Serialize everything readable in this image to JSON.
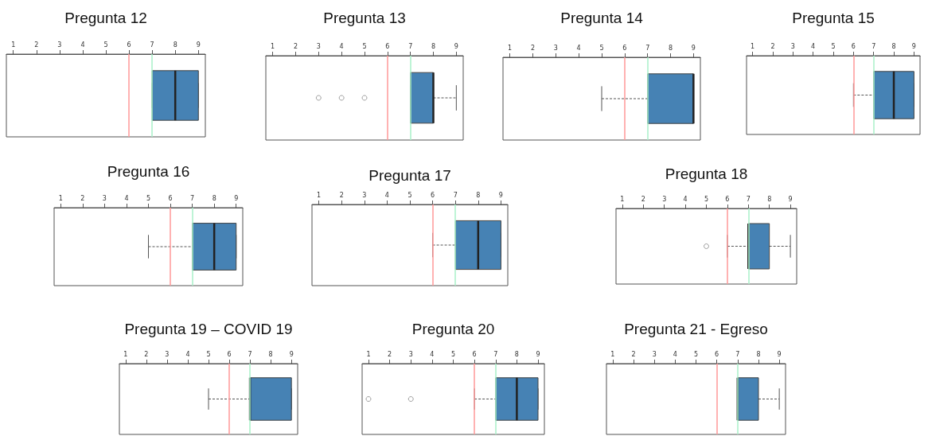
{
  "chart_data": [
    {
      "type": "box",
      "title": "Pregunta 12",
      "orientation": "horizontal",
      "categories": [
        null
      ],
      "xlim": [
        0.7,
        9.3
      ],
      "xticks": [
        1,
        2,
        3,
        4,
        5,
        6,
        7,
        8,
        9
      ],
      "tick_labels": "x",
      "grid": false,
      "ref_lines": [
        {
          "axis": "x",
          "value": 6,
          "color": "#ff9999"
        },
        {
          "axis": "x",
          "value": 7,
          "color": "#a8f0c8"
        }
      ],
      "series": [
        {
          "color": "#4682b4",
          "boxes": [
            {
              "low": 7,
              "q1": 7,
              "median": 8,
              "q3": 9,
              "high": 9
            }
          ]
        }
      ]
    },
    {
      "type": "box",
      "title": "Pregunta 13",
      "orientation": "horizontal",
      "categories": [
        null
      ],
      "xlim": [
        0.7,
        9.3
      ],
      "xticks": [
        1,
        2,
        3,
        4,
        5,
        6,
        7,
        8,
        9
      ],
      "tick_labels": "x",
      "grid": false,
      "ref_lines": [
        {
          "axis": "x",
          "value": 6,
          "color": "#ff9999"
        },
        {
          "axis": "x",
          "value": 7,
          "color": "#a8f0c8"
        }
      ],
      "series": [
        {
          "color": "#4682b4",
          "boxes": [
            {
              "low": 7,
              "q1": 7,
              "median": 8,
              "q3": 8,
              "high": 9,
              "outliers": [
                3,
                4,
                5
              ]
            }
          ]
        }
      ]
    },
    {
      "type": "box",
      "title": "Pregunta 14",
      "orientation": "horizontal",
      "categories": [
        null
      ],
      "xlim": [
        0.7,
        9.3
      ],
      "xticks": [
        1,
        2,
        3,
        4,
        5,
        6,
        7,
        8,
        9
      ],
      "tick_labels": "x",
      "grid": false,
      "ref_lines": [
        {
          "axis": "x",
          "value": 6,
          "color": "#ff9999"
        },
        {
          "axis": "x",
          "value": 7,
          "color": "#a8f0c8"
        }
      ],
      "series": [
        {
          "color": "#4682b4",
          "boxes": [
            {
              "low": 5,
              "q1": 7,
              "median": 9,
              "q3": 9,
              "high": 9
            }
          ]
        }
      ]
    },
    {
      "type": "box",
      "title": "Pregunta 15",
      "orientation": "horizontal",
      "categories": [
        null
      ],
      "xlim": [
        0.7,
        9.3
      ],
      "xticks": [
        1,
        2,
        3,
        4,
        5,
        6,
        7,
        8,
        9
      ],
      "tick_labels": "x",
      "grid": false,
      "ref_lines": [
        {
          "axis": "x",
          "value": 6,
          "color": "#ff9999"
        },
        {
          "axis": "x",
          "value": 7,
          "color": "#a8f0c8"
        }
      ],
      "series": [
        {
          "color": "#4682b4",
          "boxes": [
            {
              "low": 6,
              "q1": 7,
              "median": 8,
              "q3": 9,
              "high": 9
            }
          ]
        }
      ]
    },
    {
      "type": "box",
      "title": "Pregunta 16",
      "orientation": "horizontal",
      "categories": [
        null
      ],
      "xlim": [
        0.7,
        9.3
      ],
      "xticks": [
        1,
        2,
        3,
        4,
        5,
        6,
        7,
        8,
        9
      ],
      "tick_labels": "x",
      "grid": false,
      "ref_lines": [
        {
          "axis": "x",
          "value": 6,
          "color": "#ff9999"
        },
        {
          "axis": "x",
          "value": 7,
          "color": "#a8f0c8"
        }
      ],
      "series": [
        {
          "color": "#4682b4",
          "boxes": [
            {
              "low": 5,
              "q1": 7,
              "median": 8,
              "q3": 9,
              "high": 9
            }
          ]
        }
      ]
    },
    {
      "type": "box",
      "title": "Pregunta 17",
      "orientation": "horizontal",
      "categories": [
        null
      ],
      "xlim": [
        0.7,
        9.3
      ],
      "xticks": [
        1,
        2,
        3,
        4,
        5,
        6,
        7,
        8,
        9
      ],
      "tick_labels": "x",
      "grid": false,
      "ref_lines": [
        {
          "axis": "x",
          "value": 6,
          "color": "#ff9999"
        },
        {
          "axis": "x",
          "value": 7,
          "color": "#a8f0c8"
        }
      ],
      "series": [
        {
          "color": "#4682b4",
          "boxes": [
            {
              "low": 6,
              "q1": 7,
              "median": 8,
              "q3": 9,
              "high": 9
            }
          ]
        }
      ]
    },
    {
      "type": "box",
      "title": "Pregunta 18",
      "orientation": "horizontal",
      "categories": [
        null
      ],
      "xlim": [
        0.7,
        9.3
      ],
      "xticks": [
        1,
        2,
        3,
        4,
        5,
        6,
        7,
        8,
        9
      ],
      "tick_labels": "x",
      "grid": false,
      "ref_lines": [
        {
          "axis": "x",
          "value": 6,
          "color": "#ff9999"
        },
        {
          "axis": "x",
          "value": 7,
          "color": "#a8f0c8"
        }
      ],
      "series": [
        {
          "color": "#4682b4",
          "boxes": [
            {
              "low": 6,
              "q1": 7,
              "median": 7,
              "q3": 8,
              "high": 9,
              "outliers": [
                5
              ]
            }
          ]
        }
      ]
    },
    {
      "type": "box",
      "title": "Pregunta 19 – COVID 19",
      "orientation": "horizontal",
      "categories": [
        null
      ],
      "xlim": [
        0.7,
        9.3
      ],
      "xticks": [
        1,
        2,
        3,
        4,
        5,
        6,
        7,
        8,
        9
      ],
      "tick_labels": "x",
      "grid": false,
      "ref_lines": [
        {
          "axis": "x",
          "value": 6,
          "color": "#ff9999"
        },
        {
          "axis": "x",
          "value": 7,
          "color": "#a8f0c8"
        }
      ],
      "series": [
        {
          "color": "#4682b4",
          "boxes": [
            {
              "low": 5,
              "q1": 7,
              "median": 7,
              "q3": 9,
              "high": 9
            }
          ]
        }
      ]
    },
    {
      "type": "box",
      "title": "Pregunta 20",
      "orientation": "horizontal",
      "categories": [
        null
      ],
      "xlim": [
        0.7,
        9.3
      ],
      "xticks": [
        1,
        2,
        3,
        4,
        5,
        6,
        7,
        8,
        9
      ],
      "tick_labels": "x",
      "grid": false,
      "ref_lines": [
        {
          "axis": "x",
          "value": 6,
          "color": "#ff9999"
        },
        {
          "axis": "x",
          "value": 7,
          "color": "#a8f0c8"
        }
      ],
      "series": [
        {
          "color": "#4682b4",
          "boxes": [
            {
              "low": 6,
              "q1": 7,
              "median": 8,
              "q3": 9,
              "high": 9,
              "outliers": [
                1,
                3
              ]
            }
          ]
        }
      ]
    },
    {
      "type": "box",
      "title": "Pregunta 21 - Egreso",
      "orientation": "horizontal",
      "categories": [
        null
      ],
      "xlim": [
        0.7,
        9.3
      ],
      "xticks": [
        1,
        2,
        3,
        4,
        5,
        6,
        7,
        8,
        9
      ],
      "tick_labels": "x",
      "grid": false,
      "ref_lines": [
        {
          "axis": "x",
          "value": 6,
          "color": "#ff9999"
        },
        {
          "axis": "x",
          "value": 7,
          "color": "#a8f0c8"
        }
      ],
      "series": [
        {
          "color": "#4682b4",
          "boxes": [
            {
              "low": 7,
              "q1": 7,
              "median": 7,
              "q3": 8,
              "high": 9
            }
          ]
        }
      ]
    }
  ]
}
